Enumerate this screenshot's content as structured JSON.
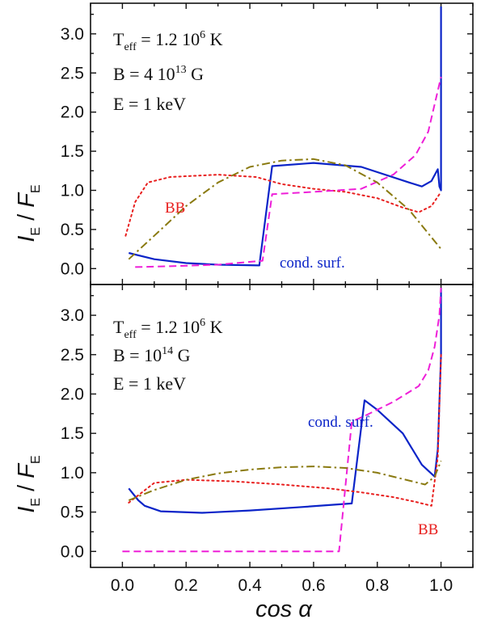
{
  "chart_data": {
    "type": "line",
    "xlim": [
      -0.1,
      1.1
    ],
    "ylim": [
      -0.1,
      3.35
    ],
    "x_ticks": [
      "0.0",
      "0.2",
      "0.4",
      "0.6",
      "0.8",
      "1.0"
    ],
    "y_ticks": [
      "0.0",
      "0.5",
      "1.0",
      "1.5",
      "2.0",
      "2.5",
      "3.0"
    ],
    "xlabel": "cos α",
    "ylabel_main": "I",
    "ylabel_main_sub": "E",
    "ylabel_den": "F",
    "ylabel_den_sub": "E",
    "ylabel_sep": " / ",
    "colors": {
      "cond_surf": "#0b24c8",
      "bb": "#e8201f",
      "magenta": "#ee1fd8",
      "olive": "#8a7a10"
    },
    "panels": [
      {
        "annotation": {
          "teff_pre": "T",
          "teff_sub": "eff",
          "teff_val": " = 1.2 10",
          "teff_exp": "6",
          "teff_unit": " K",
          "b_pre": "B = 4 10",
          "b_exp": "13",
          "b_unit": " G",
          "energy": "E = 1 keV"
        },
        "labels": {
          "bb": "BB",
          "cond_surf": "cond. surf."
        },
        "series": [
          {
            "name": "cond_surf",
            "style": "solid",
            "x": [
              0.02,
              0.1,
              0.2,
              0.3,
              0.43,
              0.43,
              0.47,
              0.6,
              0.75,
              0.9,
              0.94,
              0.97,
              0.99,
              0.995,
              1.0,
              1.0
            ],
            "y": [
              0.2,
              0.12,
              0.07,
              0.05,
              0.04,
              0.05,
              1.31,
              1.35,
              1.3,
              1.1,
              1.05,
              1.12,
              1.27,
              1.05,
              1.0,
              3.35
            ]
          },
          {
            "name": "bb",
            "style": "dotted",
            "x": [
              0.01,
              0.04,
              0.08,
              0.15,
              0.3,
              0.42,
              0.5,
              0.6,
              0.7,
              0.8,
              0.88,
              0.93,
              0.97,
              1.0
            ],
            "y": [
              0.42,
              0.85,
              1.1,
              1.17,
              1.2,
              1.17,
              1.08,
              1.02,
              0.98,
              0.9,
              0.78,
              0.72,
              0.8,
              0.98
            ]
          },
          {
            "name": "magenta",
            "style": "dashed",
            "x": [
              0.04,
              0.15,
              0.3,
              0.44,
              0.47,
              0.6,
              0.75,
              0.85,
              0.92,
              0.96,
              0.98,
              1.0
            ],
            "y": [
              0.02,
              0.03,
              0.05,
              0.1,
              0.95,
              0.98,
              1.02,
              1.2,
              1.45,
              1.75,
              2.1,
              2.45
            ]
          },
          {
            "name": "olive",
            "style": "dashdot",
            "x": [
              0.02,
              0.1,
              0.2,
              0.3,
              0.4,
              0.5,
              0.6,
              0.7,
              0.8,
              0.9,
              0.96,
              1.0
            ],
            "y": [
              0.12,
              0.42,
              0.8,
              1.1,
              1.3,
              1.38,
              1.4,
              1.32,
              1.1,
              0.75,
              0.45,
              0.25
            ]
          }
        ]
      },
      {
        "annotation": {
          "teff_pre": "T",
          "teff_sub": "eff",
          "teff_val": " = 1.2 10",
          "teff_exp": "6",
          "teff_unit": " K",
          "b_pre": "B = 10",
          "b_exp": "14",
          "b_unit": " G",
          "energy": "E = 1 keV"
        },
        "labels": {
          "bb": "BB",
          "cond_surf": "cond. surf."
        },
        "series": [
          {
            "name": "cond_surf",
            "style": "solid",
            "x": [
              0.02,
              0.05,
              0.07,
              0.12,
              0.25,
              0.4,
              0.55,
              0.72,
              0.76,
              0.8,
              0.88,
              0.94,
              0.98,
              0.99,
              1.0,
              1.0
            ],
            "y": [
              0.8,
              0.65,
              0.58,
              0.51,
              0.49,
              0.52,
              0.56,
              0.61,
              1.92,
              1.8,
              1.5,
              1.1,
              0.95,
              1.3,
              2.5,
              3.35
            ]
          },
          {
            "name": "bb",
            "style": "dotted",
            "x": [
              0.02,
              0.1,
              0.2,
              0.35,
              0.5,
              0.65,
              0.75,
              0.85,
              0.92,
              0.97,
              0.99,
              1.0
            ],
            "y": [
              0.62,
              0.87,
              0.91,
              0.89,
              0.85,
              0.8,
              0.75,
              0.69,
              0.63,
              0.58,
              1.2,
              2.5
            ]
          },
          {
            "name": "magenta",
            "style": "dashed",
            "x": [
              0.0,
              0.2,
              0.4,
              0.6,
              0.68,
              0.72,
              0.76,
              0.85,
              0.93,
              0.96,
              0.98,
              0.995,
              1.0
            ],
            "y": [
              0.0,
              0.0,
              0.0,
              0.0,
              0.0,
              1.65,
              1.72,
              1.9,
              2.1,
              2.3,
              2.6,
              3.0,
              3.35
            ]
          },
          {
            "name": "olive",
            "style": "dashdot",
            "x": [
              0.02,
              0.1,
              0.2,
              0.3,
              0.4,
              0.5,
              0.6,
              0.7,
              0.8,
              0.9,
              0.95,
              0.98,
              1.0
            ],
            "y": [
              0.65,
              0.78,
              0.91,
              0.99,
              1.04,
              1.07,
              1.08,
              1.06,
              1.0,
              0.9,
              0.85,
              0.95,
              1.15
            ]
          }
        ]
      }
    ]
  }
}
